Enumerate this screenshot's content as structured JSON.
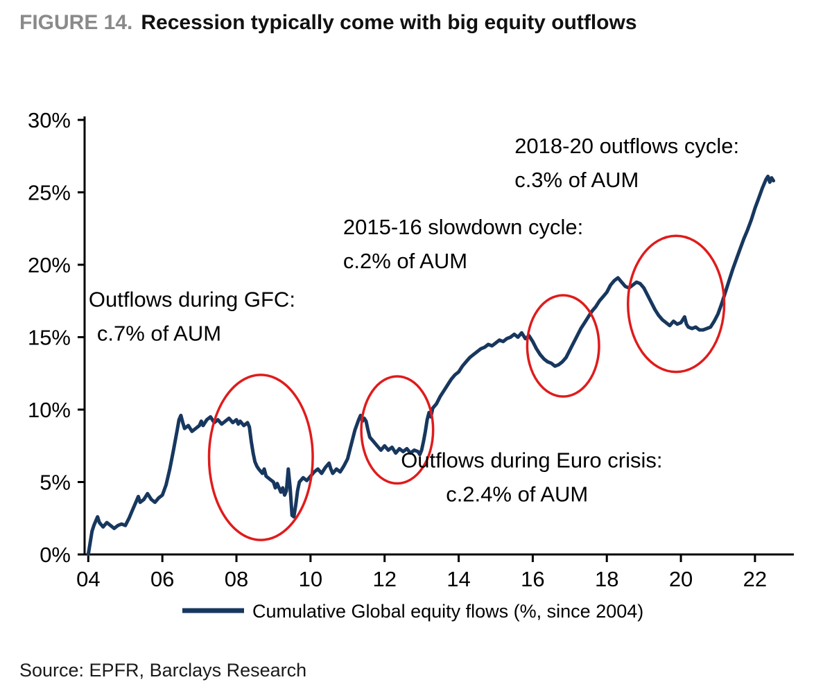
{
  "header": {
    "figure_label": "FIGURE 14.",
    "title": "Recession typically come with big equity outflows"
  },
  "source": "Source: EPFR, Barclays Research",
  "chart_data": {
    "type": "line",
    "title": "FIGURE 14. Recession typically come with big equity outflows",
    "xlabel": "",
    "ylabel": "",
    "grid": false,
    "xlim": [
      2003.9,
      2023.05
    ],
    "ylim": [
      0,
      30
    ],
    "x_ticks": [
      2004,
      2006,
      2008,
      2010,
      2012,
      2014,
      2016,
      2018,
      2020,
      2022
    ],
    "x_tick_labels": [
      "04",
      "06",
      "08",
      "10",
      "12",
      "14",
      "16",
      "18",
      "20",
      "22"
    ],
    "y_ticks": [
      0,
      5,
      10,
      15,
      20,
      25,
      30
    ],
    "y_tick_labels": [
      "0%",
      "5%",
      "10%",
      "15%",
      "20%",
      "25%",
      "30%"
    ],
    "line_color": "#17375e",
    "ellipse_color": "#e01b1b",
    "legend": {
      "label": "Cumulative Global equity flows (%, since 2004)",
      "position": "bottom"
    },
    "series": [
      {
        "name": "Cumulative Global equity flows (%, since 2004)",
        "points": [
          [
            2004.0,
            0.0
          ],
          [
            2004.05,
            0.8
          ],
          [
            2004.1,
            1.6
          ],
          [
            2004.15,
            2.0
          ],
          [
            2004.2,
            2.3
          ],
          [
            2004.25,
            2.6
          ],
          [
            2004.3,
            2.2
          ],
          [
            2004.4,
            1.9
          ],
          [
            2004.5,
            2.2
          ],
          [
            2004.6,
            2.0
          ],
          [
            2004.7,
            1.8
          ],
          [
            2004.8,
            2.0
          ],
          [
            2004.9,
            2.1
          ],
          [
            2005.0,
            2.0
          ],
          [
            2005.1,
            2.5
          ],
          [
            2005.2,
            3.1
          ],
          [
            2005.3,
            3.7
          ],
          [
            2005.35,
            4.0
          ],
          [
            2005.4,
            3.6
          ],
          [
            2005.5,
            3.8
          ],
          [
            2005.6,
            4.2
          ],
          [
            2005.7,
            3.8
          ],
          [
            2005.8,
            3.6
          ],
          [
            2005.9,
            3.9
          ],
          [
            2006.0,
            4.1
          ],
          [
            2006.1,
            4.8
          ],
          [
            2006.2,
            5.9
          ],
          [
            2006.3,
            7.2
          ],
          [
            2006.4,
            8.6
          ],
          [
            2006.45,
            9.3
          ],
          [
            2006.5,
            9.6
          ],
          [
            2006.55,
            9.1
          ],
          [
            2006.6,
            8.7
          ],
          [
            2006.7,
            8.9
          ],
          [
            2006.8,
            8.5
          ],
          [
            2006.9,
            8.7
          ],
          [
            2007.0,
            8.9
          ],
          [
            2007.05,
            9.2
          ],
          [
            2007.1,
            8.9
          ],
          [
            2007.2,
            9.3
          ],
          [
            2007.3,
            9.5
          ],
          [
            2007.4,
            9.1
          ],
          [
            2007.5,
            9.3
          ],
          [
            2007.6,
            9.0
          ],
          [
            2007.7,
            9.2
          ],
          [
            2007.8,
            9.4
          ],
          [
            2007.9,
            9.1
          ],
          [
            2008.0,
            9.3
          ],
          [
            2008.05,
            9.0
          ],
          [
            2008.1,
            9.2
          ],
          [
            2008.2,
            8.9
          ],
          [
            2008.3,
            9.1
          ],
          [
            2008.35,
            8.8
          ],
          [
            2008.4,
            7.8
          ],
          [
            2008.45,
            7.0
          ],
          [
            2008.5,
            6.4
          ],
          [
            2008.55,
            6.1
          ],
          [
            2008.6,
            5.9
          ],
          [
            2008.7,
            5.6
          ],
          [
            2008.75,
            5.9
          ],
          [
            2008.8,
            5.4
          ],
          [
            2008.9,
            5.2
          ],
          [
            2009.0,
            5.0
          ],
          [
            2009.05,
            4.6
          ],
          [
            2009.1,
            4.9
          ],
          [
            2009.2,
            4.3
          ],
          [
            2009.25,
            4.6
          ],
          [
            2009.3,
            4.1
          ],
          [
            2009.35,
            4.4
          ],
          [
            2009.4,
            5.9
          ],
          [
            2009.45,
            4.6
          ],
          [
            2009.5,
            2.7
          ],
          [
            2009.55,
            2.6
          ],
          [
            2009.6,
            3.4
          ],
          [
            2009.65,
            4.4
          ],
          [
            2009.7,
            5.0
          ],
          [
            2009.8,
            5.3
          ],
          [
            2009.9,
            5.1
          ],
          [
            2010.0,
            5.4
          ],
          [
            2010.1,
            5.7
          ],
          [
            2010.2,
            5.9
          ],
          [
            2010.3,
            5.6
          ],
          [
            2010.4,
            6.0
          ],
          [
            2010.5,
            6.3
          ],
          [
            2010.55,
            5.9
          ],
          [
            2010.6,
            5.6
          ],
          [
            2010.7,
            5.9
          ],
          [
            2010.8,
            5.7
          ],
          [
            2010.9,
            6.1
          ],
          [
            2011.0,
            6.6
          ],
          [
            2011.1,
            7.6
          ],
          [
            2011.2,
            8.6
          ],
          [
            2011.3,
            9.3
          ],
          [
            2011.35,
            9.6
          ],
          [
            2011.4,
            9.2
          ],
          [
            2011.45,
            9.4
          ],
          [
            2011.5,
            9.2
          ],
          [
            2011.55,
            8.6
          ],
          [
            2011.6,
            8.1
          ],
          [
            2011.7,
            7.8
          ],
          [
            2011.8,
            7.5
          ],
          [
            2011.9,
            7.2
          ],
          [
            2012.0,
            7.5
          ],
          [
            2012.1,
            7.2
          ],
          [
            2012.2,
            7.4
          ],
          [
            2012.3,
            7.0
          ],
          [
            2012.4,
            7.3
          ],
          [
            2012.5,
            7.1
          ],
          [
            2012.6,
            7.3
          ],
          [
            2012.7,
            7.0
          ],
          [
            2012.8,
            7.2
          ],
          [
            2012.9,
            7.1
          ],
          [
            2012.95,
            6.9
          ],
          [
            2013.0,
            7.2
          ],
          [
            2013.05,
            7.8
          ],
          [
            2013.1,
            8.5
          ],
          [
            2013.15,
            9.3
          ],
          [
            2013.2,
            9.8
          ],
          [
            2013.25,
            9.5
          ],
          [
            2013.3,
            10.1
          ],
          [
            2013.4,
            10.4
          ],
          [
            2013.5,
            10.9
          ],
          [
            2013.6,
            11.3
          ],
          [
            2013.7,
            11.7
          ],
          [
            2013.8,
            12.1
          ],
          [
            2013.9,
            12.4
          ],
          [
            2014.0,
            12.6
          ],
          [
            2014.1,
            13.0
          ],
          [
            2014.2,
            13.3
          ],
          [
            2014.3,
            13.6
          ],
          [
            2014.4,
            13.8
          ],
          [
            2014.5,
            14.0
          ],
          [
            2014.6,
            14.2
          ],
          [
            2014.7,
            14.3
          ],
          [
            2014.8,
            14.5
          ],
          [
            2014.9,
            14.4
          ],
          [
            2015.0,
            14.6
          ],
          [
            2015.1,
            14.8
          ],
          [
            2015.2,
            14.7
          ],
          [
            2015.3,
            14.9
          ],
          [
            2015.4,
            15.0
          ],
          [
            2015.5,
            15.2
          ],
          [
            2015.6,
            15.0
          ],
          [
            2015.7,
            15.3
          ],
          [
            2015.8,
            14.9
          ],
          [
            2015.9,
            15.1
          ],
          [
            2016.0,
            14.7
          ],
          [
            2016.1,
            14.2
          ],
          [
            2016.2,
            13.8
          ],
          [
            2016.3,
            13.5
          ],
          [
            2016.4,
            13.3
          ],
          [
            2016.5,
            13.2
          ],
          [
            2016.6,
            13.0
          ],
          [
            2016.7,
            13.1
          ],
          [
            2016.8,
            13.3
          ],
          [
            2016.9,
            13.6
          ],
          [
            2017.0,
            14.1
          ],
          [
            2017.1,
            14.6
          ],
          [
            2017.2,
            15.1
          ],
          [
            2017.3,
            15.6
          ],
          [
            2017.4,
            16.0
          ],
          [
            2017.5,
            16.4
          ],
          [
            2017.6,
            16.8
          ],
          [
            2017.7,
            17.1
          ],
          [
            2017.8,
            17.5
          ],
          [
            2017.9,
            17.8
          ],
          [
            2018.0,
            18.1
          ],
          [
            2018.1,
            18.6
          ],
          [
            2018.2,
            18.9
          ],
          [
            2018.3,
            19.1
          ],
          [
            2018.4,
            18.8
          ],
          [
            2018.5,
            18.5
          ],
          [
            2018.6,
            18.4
          ],
          [
            2018.7,
            18.6
          ],
          [
            2018.8,
            18.8
          ],
          [
            2018.9,
            18.7
          ],
          [
            2019.0,
            18.4
          ],
          [
            2019.1,
            17.9
          ],
          [
            2019.2,
            17.4
          ],
          [
            2019.3,
            16.9
          ],
          [
            2019.4,
            16.5
          ],
          [
            2019.5,
            16.2
          ],
          [
            2019.6,
            16.0
          ],
          [
            2019.7,
            15.8
          ],
          [
            2019.8,
            16.1
          ],
          [
            2019.9,
            15.9
          ],
          [
            2020.0,
            16.0
          ],
          [
            2020.1,
            16.4
          ],
          [
            2020.15,
            15.9
          ],
          [
            2020.2,
            15.7
          ],
          [
            2020.3,
            15.6
          ],
          [
            2020.4,
            15.7
          ],
          [
            2020.5,
            15.5
          ],
          [
            2020.6,
            15.5
          ],
          [
            2020.7,
            15.6
          ],
          [
            2020.8,
            15.7
          ],
          [
            2020.9,
            16.1
          ],
          [
            2021.0,
            16.6
          ],
          [
            2021.1,
            17.3
          ],
          [
            2021.2,
            18.1
          ],
          [
            2021.3,
            18.9
          ],
          [
            2021.4,
            19.7
          ],
          [
            2021.5,
            20.4
          ],
          [
            2021.6,
            21.1
          ],
          [
            2021.7,
            21.8
          ],
          [
            2021.8,
            22.4
          ],
          [
            2021.9,
            23.1
          ],
          [
            2022.0,
            23.9
          ],
          [
            2022.1,
            24.6
          ],
          [
            2022.2,
            25.3
          ],
          [
            2022.3,
            25.9
          ],
          [
            2022.35,
            26.1
          ],
          [
            2022.4,
            25.7
          ],
          [
            2022.45,
            26.0
          ],
          [
            2022.5,
            25.8
          ]
        ]
      }
    ],
    "ellipses": [
      {
        "name": "gfc-ellipse",
        "cx": 2008.66,
        "cy": 6.7,
        "rx": 1.4,
        "ry": 5.7
      },
      {
        "name": "euro-crisis-ellipse",
        "cx": 2012.34,
        "cy": 8.6,
        "rx": 0.97,
        "ry": 3.7
      },
      {
        "name": "slowdown-ellipse",
        "cx": 2016.82,
        "cy": 14.4,
        "rx": 0.97,
        "ry": 3.5
      },
      {
        "name": "outflows-cycle-ellipse",
        "cx": 2019.87,
        "cy": 17.3,
        "rx": 1.3,
        "ry": 4.7
      }
    ],
    "annotations": [
      {
        "name": "gfc-annotation",
        "x": 2004.01,
        "y": 17.1,
        "lines": [
          {
            "text": "Outflows during GFC:",
            "dx": 0
          },
          {
            "text": "c.7% of AUM",
            "dx": 12
          }
        ]
      },
      {
        "name": "slowdown-annotation",
        "x": 2010.88,
        "y": 22.1,
        "lines": [
          {
            "text": "2015-16 slowdown cycle:",
            "dx": 0
          },
          {
            "text": "c.2% of AUM",
            "dx": 0
          }
        ]
      },
      {
        "name": "outflows-cycle-annotation",
        "x": 2015.51,
        "y": 27.7,
        "lines": [
          {
            "text": "2018-20 outflows cycle:",
            "dx": 0
          },
          {
            "text": "c.3% of AUM",
            "dx": 0
          }
        ]
      },
      {
        "name": "euro-crisis-annotation",
        "x": 2012.44,
        "y": 6.0,
        "lines": [
          {
            "text": "Outflows during Euro crisis:",
            "dx": 0
          },
          {
            "text": "c.2.4% of AUM",
            "dx": 65
          }
        ]
      }
    ]
  }
}
